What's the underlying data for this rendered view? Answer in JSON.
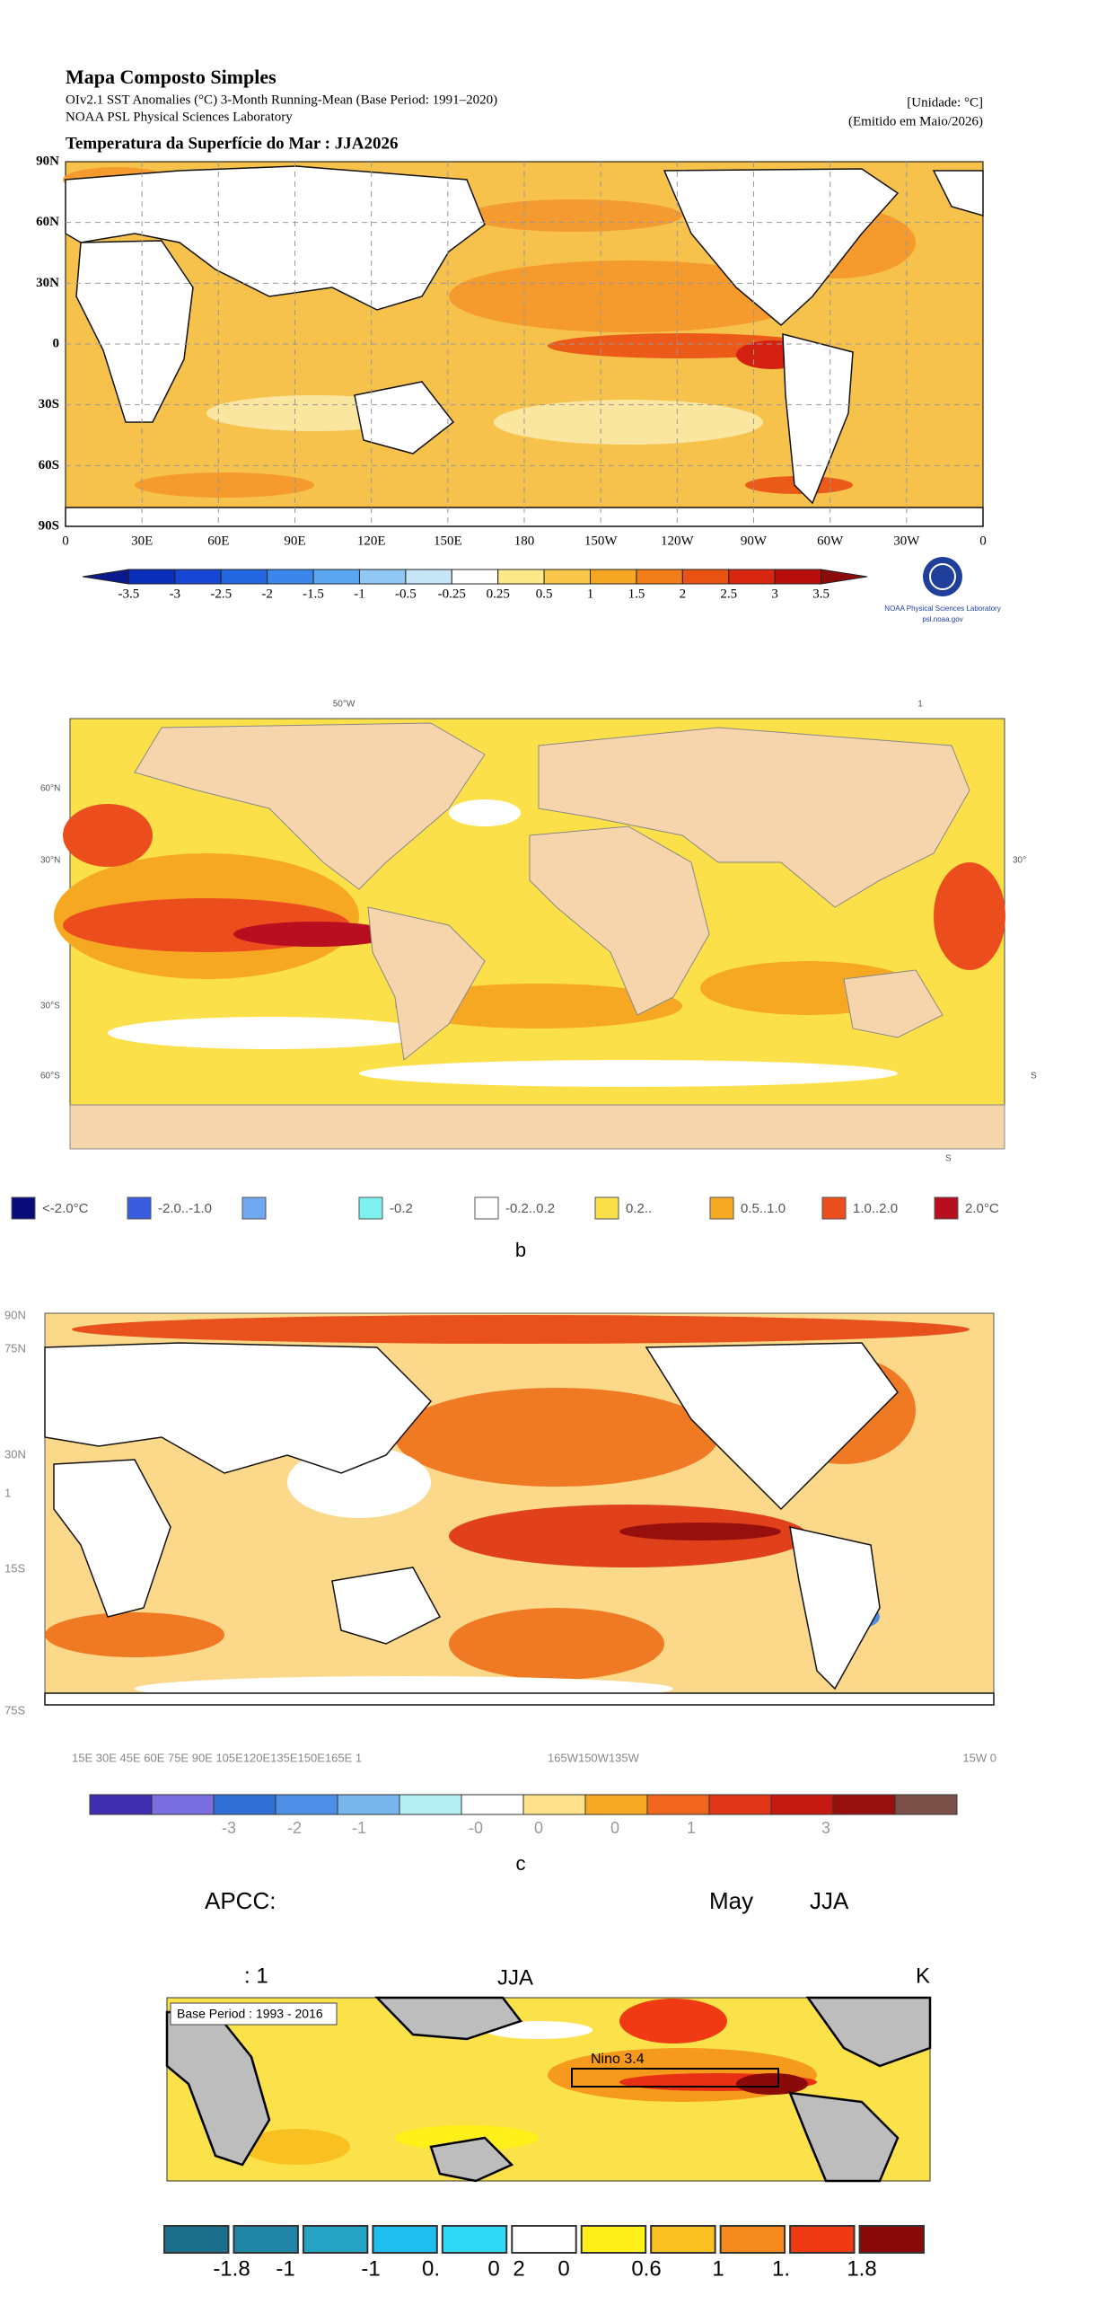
{
  "panel1": {
    "title": "Mapa Composto Simples",
    "subtitle": "OIv2.1 SST Anomalies (°C) 3-Month Running-Mean (Base Period: 1991–2020)",
    "source": "NOAA PSL Physical Sciences Laboratory",
    "unit": "[Unidade: °C]",
    "issued": "(Emitido em Maio/2026)",
    "map_title": "Temperatura da Superfície do Mar : JJA2026",
    "y_labels": [
      "90N",
      "60N",
      "30N",
      "0",
      "30S",
      "60S",
      "90S"
    ],
    "x_labels": [
      "0",
      "30E",
      "60E",
      "90E",
      "120E",
      "150E",
      "180",
      "150W",
      "120W",
      "90W",
      "60W",
      "30W",
      "0"
    ],
    "colorbar_labels": [
      "-3.5",
      "-3",
      "-2.5",
      "-2",
      "-1.5",
      "-1",
      "-0.5",
      "-0.25",
      "0.25",
      "0.5",
      "1",
      "1.5",
      "2",
      "2.5",
      "3",
      "3.5"
    ],
    "colorbar_colors": [
      "#0a1a8c",
      "#0b2fb8",
      "#1546d4",
      "#2266e0",
      "#3b86ea",
      "#5aa6f0",
      "#8fc8f4",
      "#c6e6f7",
      "#ffffff",
      "#fde88a",
      "#f9c84a",
      "#f5a623",
      "#f07d1a",
      "#e85314",
      "#d9260f",
      "#b80d0d",
      "#8c0a0a"
    ],
    "logo_name": "NOAA Physical Sciences Laboratory",
    "logo_url": "psl.noaa.gov"
  },
  "panel2": {
    "top_labels": [
      "50°W",
      "1"
    ],
    "left_labels": [
      "60°N",
      "30°N",
      "30°S",
      "60°S"
    ],
    "right_labels": [
      "30°",
      "S",
      "S"
    ],
    "legend": [
      {
        "label": "<-2.0°C",
        "color": "#0a0a7a"
      },
      {
        "label": "-2.0..-1.0",
        "color": "#3a5ce0"
      },
      {
        "label": "",
        "color": "#6fa8f0"
      },
      {
        "label": "-0.2",
        "color": "#7ff0f0"
      },
      {
        "label": "-0.2..0.2",
        "color": "#ffffff"
      },
      {
        "label": "0.2..",
        "color": "#fbe04a"
      },
      {
        "label": "0.5..1.0",
        "color": "#f7a823"
      },
      {
        "label": "1.0..2.0",
        "color": "#ec4d1c"
      },
      {
        "label": "2.0°C",
        "color": "#b80f20"
      }
    ],
    "caption": "b"
  },
  "panel3": {
    "y_labels": [
      "90N",
      "75N",
      "30N",
      "1",
      "15S",
      "75S"
    ],
    "x_labels": [
      "15E 30E 45E 60E 75E 90E 105E120E135E150E165E 1",
      "165W150W135W",
      "15W 0"
    ],
    "colorbar_labels": [
      "-3",
      "-2",
      "-1",
      "-0",
      "0",
      "0",
      "1",
      "3"
    ],
    "colorbar_colors": [
      "#3f2fb0",
      "#7a6ee0",
      "#2f6fd6",
      "#4d8fe6",
      "#7ab6ee",
      "#b5eef2",
      "#ffffff",
      "#fde08a",
      "#f7a823",
      "#f0661c",
      "#e03516",
      "#c41a12",
      "#98100e",
      "#7a5048"
    ],
    "caption": "c"
  },
  "panel4": {
    "header": [
      "APCC:",
      "May",
      "JJA"
    ],
    "map_header": [
      ": 1",
      "JJA",
      "K"
    ],
    "base_period": "Base Period : 1993 - 2016",
    "region": "Nino 3.4",
    "colorbar_labels": [
      "-1.8",
      "-1",
      "-1",
      "0.",
      "0",
      "2",
      "0",
      "0.6",
      "1",
      "1.",
      "1.8"
    ],
    "colorbar_colors": [
      "#1b6f8a",
      "#1f86a8",
      "#25a3c2",
      "#1fbdf0",
      "#2fd9f5",
      "#ffffff",
      "#fff01a",
      "#f8c020",
      "#f58a1e",
      "#ef3a14",
      "#8a0a0a"
    ]
  }
}
